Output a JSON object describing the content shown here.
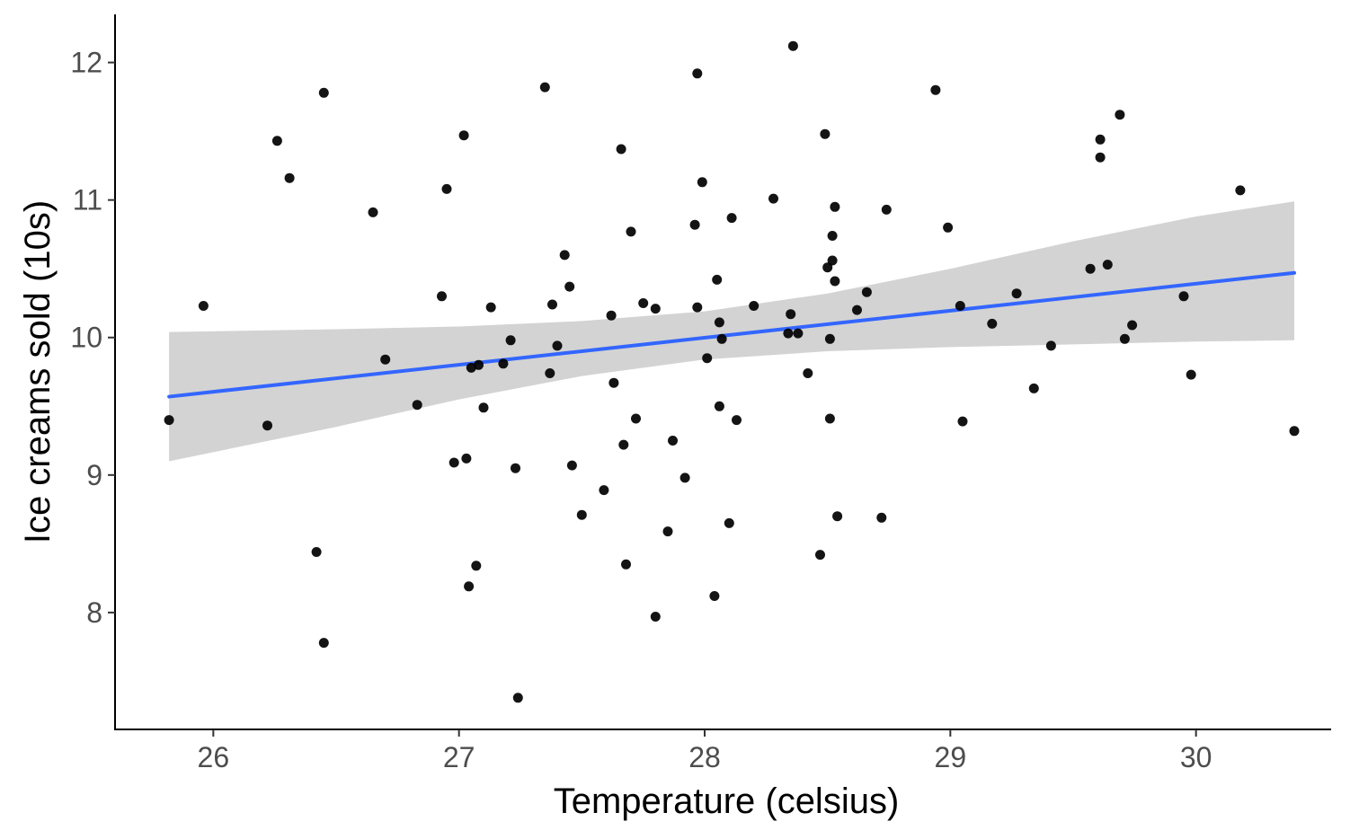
{
  "chart_data": {
    "type": "scatter",
    "xlabel": "Temperature (celsius)",
    "ylabel": "Ice creams sold (10s)",
    "xlim": [
      25.6,
      30.55
    ],
    "ylim": [
      7.15,
      12.35
    ],
    "x_ticks": [
      26,
      27,
      28,
      29,
      30
    ],
    "y_ticks": [
      8,
      9,
      10,
      11,
      12
    ],
    "x_tick_labels": [
      "26",
      "27",
      "28",
      "29",
      "30"
    ],
    "y_tick_labels": [
      "8",
      "9",
      "10",
      "11",
      "12"
    ],
    "grid": false,
    "colors": {
      "points": "#000000",
      "line": "#3366ff",
      "ribbon": "#d3d3d3",
      "axis": "#000000"
    },
    "points": [
      [
        25.82,
        9.4
      ],
      [
        25.96,
        10.23
      ],
      [
        26.22,
        9.36
      ],
      [
        26.26,
        11.43
      ],
      [
        26.31,
        11.16
      ],
      [
        26.42,
        8.44
      ],
      [
        26.45,
        11.78
      ],
      [
        26.45,
        7.78
      ],
      [
        26.65,
        10.91
      ],
      [
        26.7,
        9.84
      ],
      [
        26.83,
        9.51
      ],
      [
        26.93,
        10.3
      ],
      [
        26.95,
        11.08
      ],
      [
        26.98,
        9.09
      ],
      [
        27.02,
        11.47
      ],
      [
        27.03,
        9.12
      ],
      [
        27.04,
        8.19
      ],
      [
        27.05,
        9.78
      ],
      [
        27.07,
        8.34
      ],
      [
        27.08,
        9.8
      ],
      [
        27.1,
        9.49
      ],
      [
        27.13,
        10.22
      ],
      [
        27.18,
        9.81
      ],
      [
        27.21,
        9.98
      ],
      [
        27.23,
        9.05
      ],
      [
        27.24,
        7.38
      ],
      [
        27.35,
        11.82
      ],
      [
        27.37,
        9.74
      ],
      [
        27.38,
        10.24
      ],
      [
        27.4,
        9.94
      ],
      [
        27.43,
        10.6
      ],
      [
        27.45,
        10.37
      ],
      [
        27.46,
        9.07
      ],
      [
        27.5,
        8.71
      ],
      [
        27.59,
        8.89
      ],
      [
        27.62,
        10.16
      ],
      [
        27.63,
        9.67
      ],
      [
        27.66,
        11.37
      ],
      [
        27.67,
        9.22
      ],
      [
        27.68,
        8.35
      ],
      [
        27.7,
        10.77
      ],
      [
        27.72,
        9.41
      ],
      [
        27.75,
        10.25
      ],
      [
        27.8,
        10.21
      ],
      [
        27.8,
        7.97
      ],
      [
        27.85,
        8.59
      ],
      [
        27.87,
        9.25
      ],
      [
        27.92,
        8.98
      ],
      [
        27.96,
        10.82
      ],
      [
        27.97,
        11.92
      ],
      [
        27.97,
        10.22
      ],
      [
        27.99,
        11.13
      ],
      [
        28.01,
        9.85
      ],
      [
        28.04,
        8.12
      ],
      [
        28.05,
        10.42
      ],
      [
        28.06,
        10.11
      ],
      [
        28.06,
        9.5
      ],
      [
        28.07,
        9.99
      ],
      [
        28.1,
        8.65
      ],
      [
        28.11,
        10.87
      ],
      [
        28.13,
        9.4
      ],
      [
        28.2,
        10.23
      ],
      [
        28.28,
        11.01
      ],
      [
        28.35,
        10.17
      ],
      [
        28.34,
        10.03
      ],
      [
        28.36,
        12.12
      ],
      [
        28.38,
        10.03
      ],
      [
        28.42,
        9.74
      ],
      [
        28.47,
        8.42
      ],
      [
        28.49,
        11.48
      ],
      [
        28.5,
        10.51
      ],
      [
        28.51,
        9.99
      ],
      [
        28.51,
        9.41
      ],
      [
        28.52,
        10.74
      ],
      [
        28.52,
        10.56
      ],
      [
        28.53,
        10.41
      ],
      [
        28.53,
        10.95
      ],
      [
        28.54,
        8.7
      ],
      [
        28.62,
        10.2
      ],
      [
        28.66,
        10.33
      ],
      [
        28.72,
        8.69
      ],
      [
        28.74,
        10.93
      ],
      [
        28.94,
        11.8
      ],
      [
        28.99,
        10.8
      ],
      [
        29.04,
        10.23
      ],
      [
        29.05,
        9.39
      ],
      [
        29.17,
        10.1
      ],
      [
        29.27,
        10.32
      ],
      [
        29.34,
        9.63
      ],
      [
        29.41,
        9.94
      ],
      [
        29.57,
        10.5
      ],
      [
        29.61,
        11.31
      ],
      [
        29.61,
        11.44
      ],
      [
        29.64,
        10.53
      ],
      [
        29.69,
        11.62
      ],
      [
        29.71,
        9.99
      ],
      [
        29.74,
        10.09
      ],
      [
        29.95,
        10.3
      ],
      [
        29.98,
        9.73
      ],
      [
        30.18,
        11.07
      ],
      [
        30.4,
        9.32
      ]
    ],
    "trend_line": {
      "method": "linear",
      "x": [
        25.82,
        30.4
      ],
      "y": [
        9.57,
        10.47
      ]
    },
    "confidence_band": {
      "x": [
        25.82,
        26.5,
        27.0,
        27.5,
        28.0,
        28.5,
        29.0,
        29.5,
        30.0,
        30.4
      ],
      "lower": [
        9.1,
        9.35,
        9.55,
        9.72,
        9.84,
        9.9,
        9.93,
        9.95,
        9.97,
        9.98
      ],
      "upper": [
        10.04,
        10.06,
        10.08,
        10.12,
        10.19,
        10.32,
        10.5,
        10.7,
        10.88,
        10.99
      ]
    }
  }
}
